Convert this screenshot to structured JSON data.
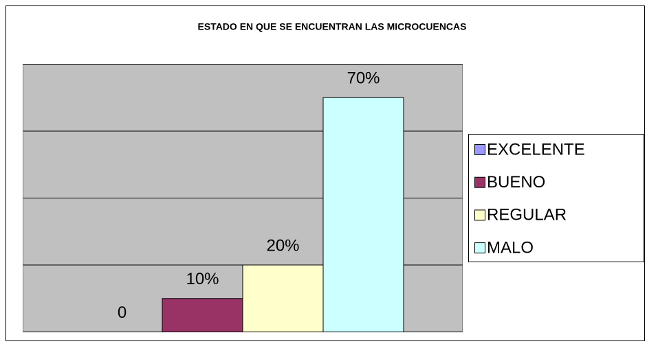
{
  "chart_data": {
    "type": "bar",
    "title": "ESTADO EN QUE SE ENCUENTRAN LAS MICROCUENCAS",
    "series": [
      {
        "name": "EXCELENTE",
        "color": "#9999ff",
        "values": [
          0
        ],
        "value_labels": [
          "0"
        ]
      },
      {
        "name": "BUENO",
        "color": "#993366",
        "values": [
          10
        ],
        "value_labels": [
          "10%"
        ]
      },
      {
        "name": "REGULAR",
        "color": "#ffffcc",
        "values": [
          20
        ],
        "value_labels": [
          "20%"
        ]
      },
      {
        "name": "MALO",
        "color": "#ccffff",
        "values": [
          70
        ],
        "value_labels": [
          "70%"
        ]
      }
    ],
    "ylim": [
      0,
      80
    ],
    "yticks": [
      0,
      20,
      40,
      60,
      80
    ],
    "grid": true,
    "legend": "right"
  }
}
